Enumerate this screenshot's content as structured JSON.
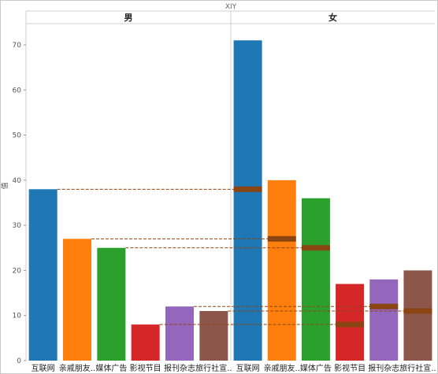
{
  "chart_data": {
    "type": "bar",
    "title": "XIY",
    "ylabel": "值",
    "xlabel": "",
    "ylim": [
      0,
      75
    ],
    "yticks": [
      0,
      10,
      20,
      30,
      40,
      50,
      60,
      70
    ],
    "grid": false,
    "legend": "none",
    "panels": [
      "男",
      "女"
    ],
    "categories": [
      "互联网",
      "亲戚朋友..",
      "媒体广告",
      "影视节目",
      "报刊杂志",
      "旅行社宣.."
    ],
    "series": [
      {
        "panel": "男",
        "values": [
          38,
          27,
          25,
          8,
          12,
          11
        ]
      },
      {
        "panel": "女",
        "values": [
          71,
          40,
          36,
          17,
          18,
          20
        ]
      }
    ],
    "reference_markers_panel": "女",
    "reference_markers": [
      38,
      27,
      25,
      8,
      12,
      11
    ]
  },
  "colors": {
    "bars": [
      "#1f77b4",
      "#ff7f0e",
      "#2ca02c",
      "#d62728",
      "#9467bd",
      "#8c564b"
    ],
    "marker": "#8b4513",
    "reference_line": "#8b4513",
    "panel_border": "#d0d0d0"
  }
}
